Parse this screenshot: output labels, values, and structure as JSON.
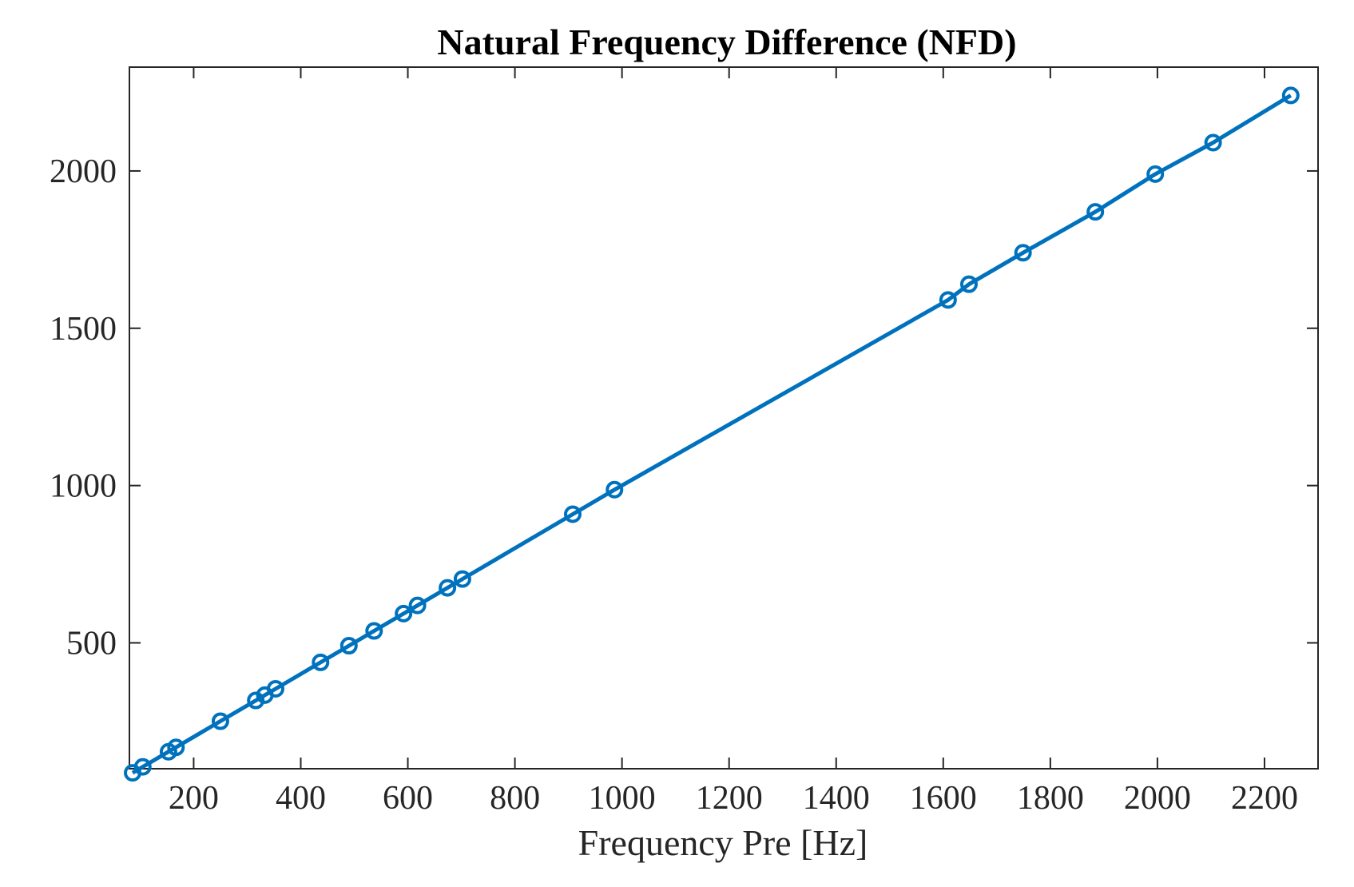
{
  "chart_data": {
    "type": "line",
    "title": "Natural Frequency Difference (NFD)",
    "xlabel": "Frequency Pre [Hz]",
    "ylabel": "",
    "xlim": [
      80,
      2300
    ],
    "ylim": [
      100,
      2330
    ],
    "xticks": [
      200,
      400,
      600,
      800,
      1000,
      1200,
      1400,
      1600,
      1800,
      2000,
      2200
    ],
    "yticks": [
      500,
      1000,
      1500,
      2000
    ],
    "grid": false,
    "legend": "none",
    "line_color": "#0072BD",
    "marker": "circle",
    "series": [
      {
        "x": [
          86,
          105,
          153,
          167,
          250,
          316,
          333,
          353,
          437,
          490,
          537,
          592,
          618,
          674,
          702,
          908,
          986,
          1609,
          1648,
          1749,
          1884,
          1996,
          2104,
          2249
        ],
        "y": [
          87,
          106,
          154,
          168,
          251,
          317,
          334,
          354,
          438,
          491,
          538,
          593,
          619,
          675,
          703,
          909,
          987,
          1590,
          1640,
          1740,
          1870,
          1990,
          2090,
          2240
        ]
      }
    ]
  }
}
